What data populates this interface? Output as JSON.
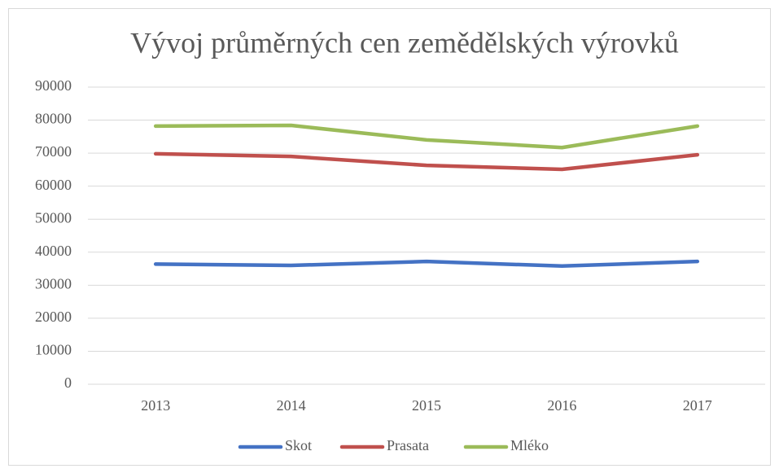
{
  "chart_data": {
    "type": "line",
    "title": "Vývoj průměrných cen zemědělských výrovků",
    "categories": [
      "2013",
      "2014",
      "2015",
      "2016",
      "2017"
    ],
    "series": [
      {
        "name": "Skot",
        "color": "#4472c4",
        "values": [
          36400,
          36000,
          37200,
          35800,
          37200
        ]
      },
      {
        "name": "Prasata",
        "color": "#c0504d",
        "values": [
          69800,
          69000,
          66300,
          65100,
          69500
        ]
      },
      {
        "name": "Mléko",
        "color": "#9bbb59",
        "values": [
          78200,
          78400,
          74000,
          71700,
          78200
        ]
      }
    ],
    "ylim": [
      0,
      90000
    ],
    "yticks": [
      0,
      10000,
      20000,
      30000,
      40000,
      50000,
      60000,
      70000,
      80000,
      90000
    ],
    "grid": true,
    "legend": "bottom"
  }
}
